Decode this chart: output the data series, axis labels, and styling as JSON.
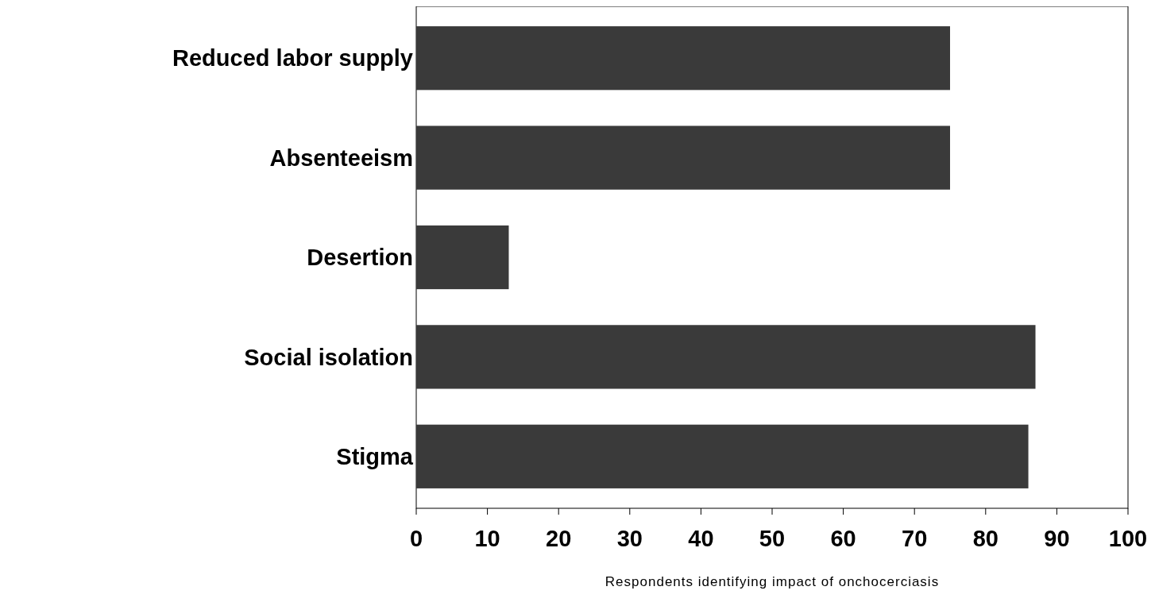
{
  "chart_data": {
    "type": "bar",
    "orientation": "horizontal",
    "xlabel": "Respondents identifying impact of onchocerciasis",
    "categories": [
      "Reduced labor supply",
      "Absenteeism",
      "Desertion",
      "Social isolation",
      "Stigma"
    ],
    "values": [
      75,
      75,
      13,
      87,
      86
    ],
    "color": "#3a3a3a",
    "xlim": [
      0,
      100
    ],
    "xticks": [
      0,
      10,
      20,
      30,
      40,
      50,
      60,
      70,
      80,
      90,
      100
    ],
    "grid": false
  }
}
